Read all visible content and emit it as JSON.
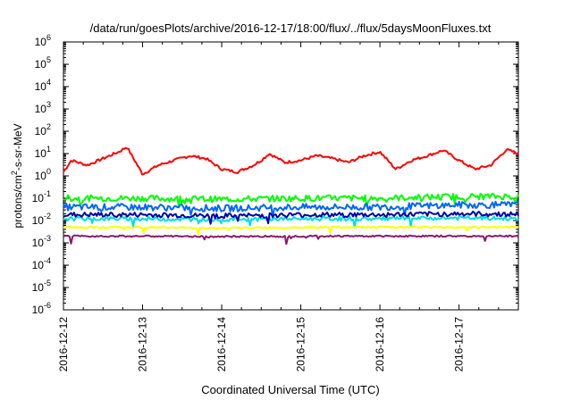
{
  "chart_data": {
    "type": "line",
    "title": "/data/run/goesPlots/archive/2016-12-17/18:00/flux/../flux/5daysMoonFluxes.txt",
    "xlabel": "Coordinated Universal Time (UTC)",
    "ylabel": "protons/cm2-s-sr-MeV",
    "ylabel_parts": [
      "protons/cm",
      "2",
      "-s-sr-MeV"
    ],
    "y_scale": "log",
    "ylim_exponents": [
      -6,
      6
    ],
    "y_ticks": [
      {
        "base": "10",
        "exp": "6"
      },
      {
        "base": "10",
        "exp": "5"
      },
      {
        "base": "10",
        "exp": "4"
      },
      {
        "base": "10",
        "exp": "3"
      },
      {
        "base": "10",
        "exp": "2"
      },
      {
        "base": "10",
        "exp": "1"
      },
      {
        "base": "10",
        "exp": "0"
      },
      {
        "base": "10",
        "exp": "-1"
      },
      {
        "base": "10",
        "exp": "-2"
      },
      {
        "base": "10",
        "exp": "-3"
      },
      {
        "base": "10",
        "exp": "-4"
      },
      {
        "base": "10",
        "exp": "-5"
      },
      {
        "base": "10",
        "exp": "-6"
      }
    ],
    "x_range_days": [
      "2016-12-12",
      "2016-12-17 18:00"
    ],
    "x_tick_labels": [
      "2016-12-12",
      "2016-12-13",
      "2016-12-14",
      "2016-12-15",
      "2016-12-16",
      "2016-12-17"
    ],
    "grid": false,
    "legend": "none",
    "series": [
      {
        "color": "#ff0000",
        "x": [
          0,
          0.1,
          0.3,
          0.5,
          0.7,
          0.8,
          0.9,
          1.0,
          1.2,
          1.4,
          1.6,
          1.8,
          2.0,
          2.2,
          2.4,
          2.5,
          2.6,
          2.8,
          3.0,
          3.2,
          3.4,
          3.6,
          3.8,
          4.0,
          4.2,
          4.4,
          4.6,
          4.8,
          5.0,
          5.2,
          5.4,
          5.6,
          5.75
        ],
        "y": [
          1.5,
          5,
          3,
          6,
          12,
          20,
          5,
          1.2,
          3,
          5,
          8,
          6,
          2,
          1.5,
          3,
          5,
          10,
          4,
          5,
          8,
          6,
          4,
          8,
          12,
          2,
          5,
          8,
          14,
          5,
          2,
          3,
          15,
          10
        ]
      },
      {
        "color": "#00ff00",
        "x": [
          0,
          1,
          2,
          3,
          4,
          5,
          5.75
        ],
        "y": [
          0.1,
          0.1,
          0.09,
          0.1,
          0.1,
          0.12,
          0.12
        ]
      },
      {
        "color": "#0066ff",
        "x": [
          0,
          1,
          2,
          3,
          4,
          5,
          5.75
        ],
        "y": [
          0.04,
          0.04,
          0.035,
          0.04,
          0.04,
          0.05,
          0.05
        ]
      },
      {
        "color": "#00dddd",
        "x": [
          0,
          1,
          2,
          3,
          4,
          5,
          5.75
        ],
        "y": [
          0.012,
          0.012,
          0.011,
          0.012,
          0.012,
          0.013,
          0.012
        ]
      },
      {
        "color": "#0000aa",
        "x": [
          0,
          1,
          2,
          3,
          4,
          5,
          5.75
        ],
        "y": [
          0.018,
          0.018,
          0.016,
          0.018,
          0.018,
          0.02,
          0.019
        ]
      },
      {
        "color": "#ffff00",
        "x": [
          0,
          1,
          2,
          3,
          4,
          5,
          5.75
        ],
        "y": [
          0.005,
          0.005,
          0.0045,
          0.005,
          0.005,
          0.005,
          0.005
        ]
      },
      {
        "color": "#8b1a6b",
        "x": [
          0,
          1,
          2,
          3,
          4,
          5,
          5.75
        ],
        "y": [
          0.002,
          0.002,
          0.0019,
          0.002,
          0.002,
          0.002,
          0.002
        ]
      }
    ]
  }
}
